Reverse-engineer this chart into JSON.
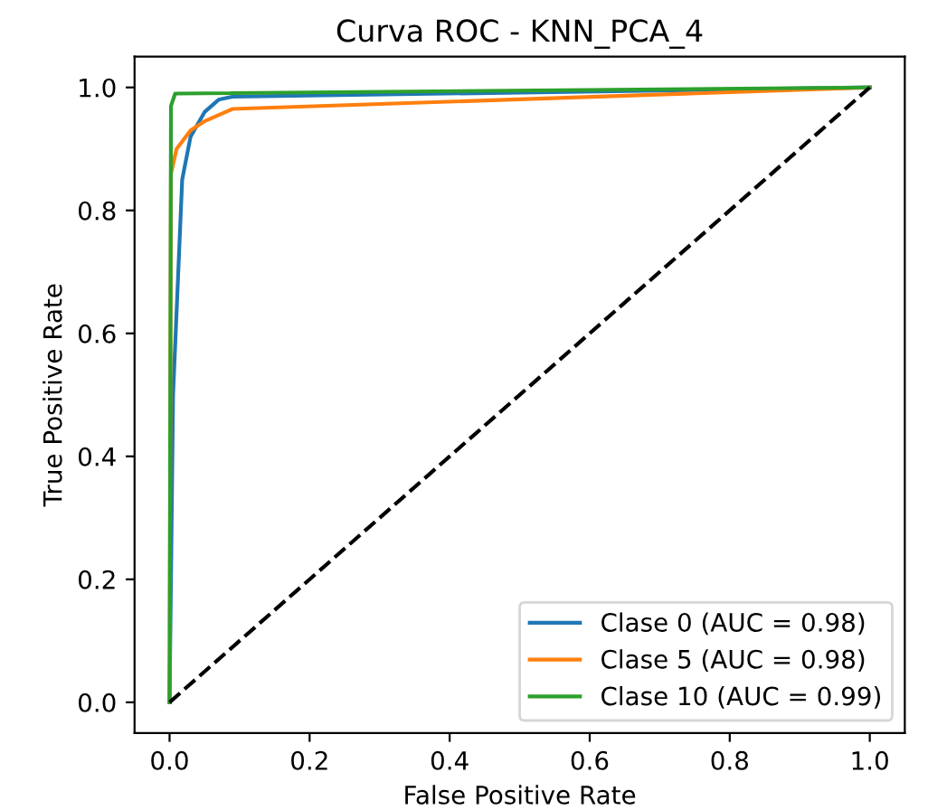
{
  "chart_data": {
    "type": "line",
    "title": "Curva ROC - KNN_PCA_4",
    "xlabel": "False Positive Rate",
    "ylabel": "True Positive Rate",
    "xlim": [
      -0.05,
      1.05
    ],
    "ylim": [
      -0.05,
      1.05
    ],
    "xticks": [
      {
        "value": 0,
        "label": "0.0"
      },
      {
        "value": 0.2,
        "label": "0.2"
      },
      {
        "value": 0.4,
        "label": "0.4"
      },
      {
        "value": 0.6,
        "label": "0.6"
      },
      {
        "value": 0.8,
        "label": "0.8"
      },
      {
        "value": 1,
        "label": "1.0"
      }
    ],
    "yticks": [
      {
        "value": 0,
        "label": "0.0"
      },
      {
        "value": 0.2,
        "label": "0.2"
      },
      {
        "value": 0.4,
        "label": "0.4"
      },
      {
        "value": 0.6,
        "label": "0.6"
      },
      {
        "value": 0.8,
        "label": "0.8"
      },
      {
        "value": 1,
        "label": "1.0"
      }
    ],
    "grid": false,
    "legend": "bottom right",
    "series": [
      {
        "name": "Clase 0 (AUC = 0.98)",
        "color": "#1f77b4",
        "x": [
          0,
          0.005,
          0.018,
          0.03,
          0.05,
          0.07,
          0.09,
          1
        ],
        "values": [
          0,
          0.5,
          0.85,
          0.92,
          0.96,
          0.98,
          0.985,
          1
        ]
      },
      {
        "name": "Clase 5 (AUC = 0.98)",
        "color": "#ff7f0e",
        "x": [
          0,
          0.002,
          0.01,
          0.03,
          0.05,
          0.09,
          1
        ],
        "values": [
          0,
          0.86,
          0.9,
          0.93,
          0.945,
          0.965,
          1
        ]
      },
      {
        "name": "Clase 10 (AUC = 0.99)",
        "color": "#2ca02c",
        "x": [
          0,
          0.002,
          0.008,
          1
        ],
        "values": [
          0,
          0.97,
          0.99,
          1
        ]
      },
      {
        "color": "#000000",
        "line_style": "dashed",
        "x": [
          0,
          1
        ],
        "values": [
          0,
          1
        ]
      }
    ]
  }
}
